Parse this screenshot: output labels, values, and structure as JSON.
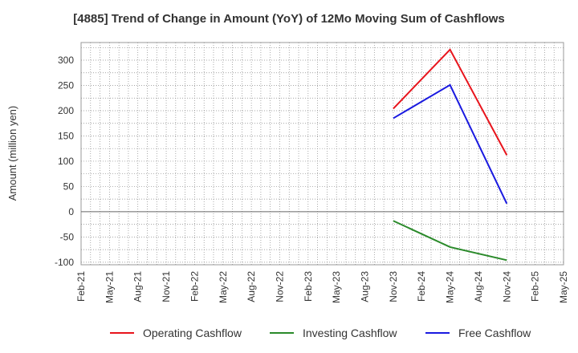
{
  "chart_data": {
    "type": "line",
    "title": "[4885]  Trend of Change in Amount (YoY) of 12Mo Moving Sum of Cashflows",
    "xlabel": "",
    "ylabel": "Amount (million yen)",
    "categories": [
      "Feb-21",
      "May-21",
      "Aug-21",
      "Nov-21",
      "Feb-22",
      "May-22",
      "Aug-22",
      "Nov-22",
      "Feb-23",
      "May-23",
      "Aug-23",
      "Nov-23",
      "Feb-24",
      "May-24",
      "Aug-24",
      "Nov-24",
      "Feb-25",
      "May-25"
    ],
    "yticks": [
      300,
      250,
      200,
      150,
      100,
      50,
      0,
      -50,
      -100
    ],
    "ylim": [
      -105,
      335
    ],
    "grid": true,
    "legend_position": "bottom",
    "series": [
      {
        "name": "Operating Cashflow",
        "color": "#e8141c",
        "points": [
          {
            "x": "Nov-23",
            "y": 204
          },
          {
            "x": "May-24",
            "y": 321
          },
          {
            "x": "Nov-24",
            "y": 112
          }
        ]
      },
      {
        "name": "Investing Cashflow",
        "color": "#2a8a2a",
        "points": [
          {
            "x": "Nov-23",
            "y": -18
          },
          {
            "x": "May-24",
            "y": -70
          },
          {
            "x": "Nov-24",
            "y": -96
          }
        ]
      },
      {
        "name": "Free Cashflow",
        "color": "#1a1ae0",
        "points": [
          {
            "x": "Nov-23",
            "y": 185
          },
          {
            "x": "May-24",
            "y": 251
          },
          {
            "x": "Nov-24",
            "y": 16
          }
        ]
      }
    ]
  }
}
